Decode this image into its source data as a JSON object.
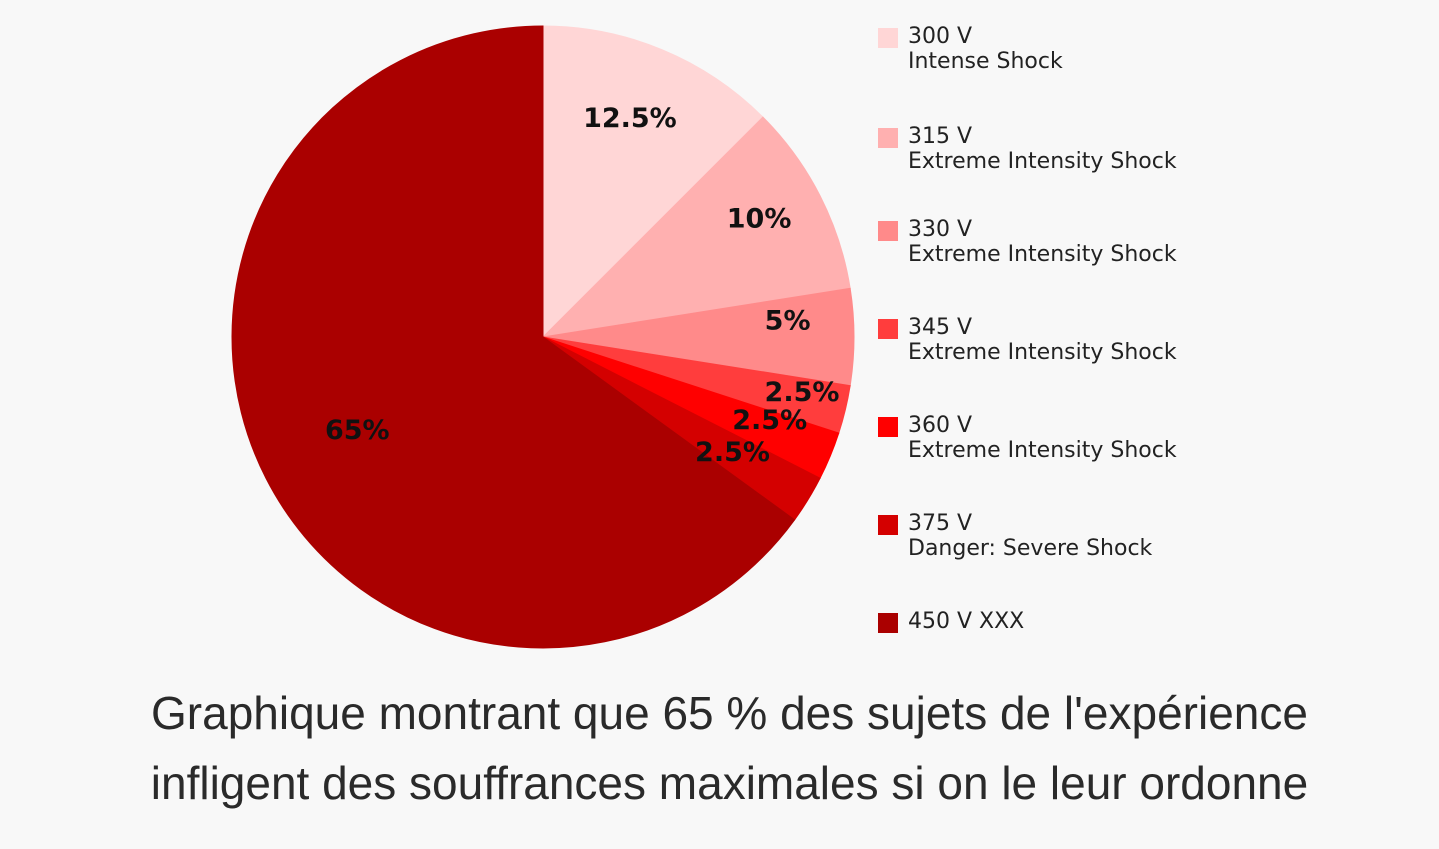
{
  "chart_data": {
    "type": "pie",
    "start_angle_deg": 0,
    "direction": "clockwise",
    "slices": [
      {
        "value": 12.5,
        "label": "12.5%",
        "voltage": "300 V",
        "description": "Intense Shock",
        "color": "#ffd6d6"
      },
      {
        "value": 10,
        "label": "10%",
        "voltage": "315 V",
        "description": "Extreme Intensity Shock",
        "color": "#ffb0b0"
      },
      {
        "value": 5,
        "label": "5%",
        "voltage": "330 V",
        "description": "Extreme Intensity Shock",
        "color": "#ff8a8a"
      },
      {
        "value": 2.5,
        "label": "2.5%",
        "voltage": "345 V",
        "description": "Extreme Intensity Shock",
        "color": "#ff3d3d"
      },
      {
        "value": 2.5,
        "label": "2.5%",
        "voltage": "360 V",
        "description": "Extreme Intensity Shock",
        "color": "#ff0000"
      },
      {
        "value": 2.5,
        "label": "2.5%",
        "voltage": "375 V",
        "description": "Danger: Severe Shock",
        "color": "#d40000"
      },
      {
        "value": 65,
        "label": "65%",
        "voltage": "450 V XXX",
        "description": "",
        "color": "#aa0000"
      }
    ]
  },
  "caption": {
    "line1": "Graphique montrant que 65 % des sujets de l'expérience",
    "line2": "infligent des souffrances maximales si on le leur ordonne"
  }
}
